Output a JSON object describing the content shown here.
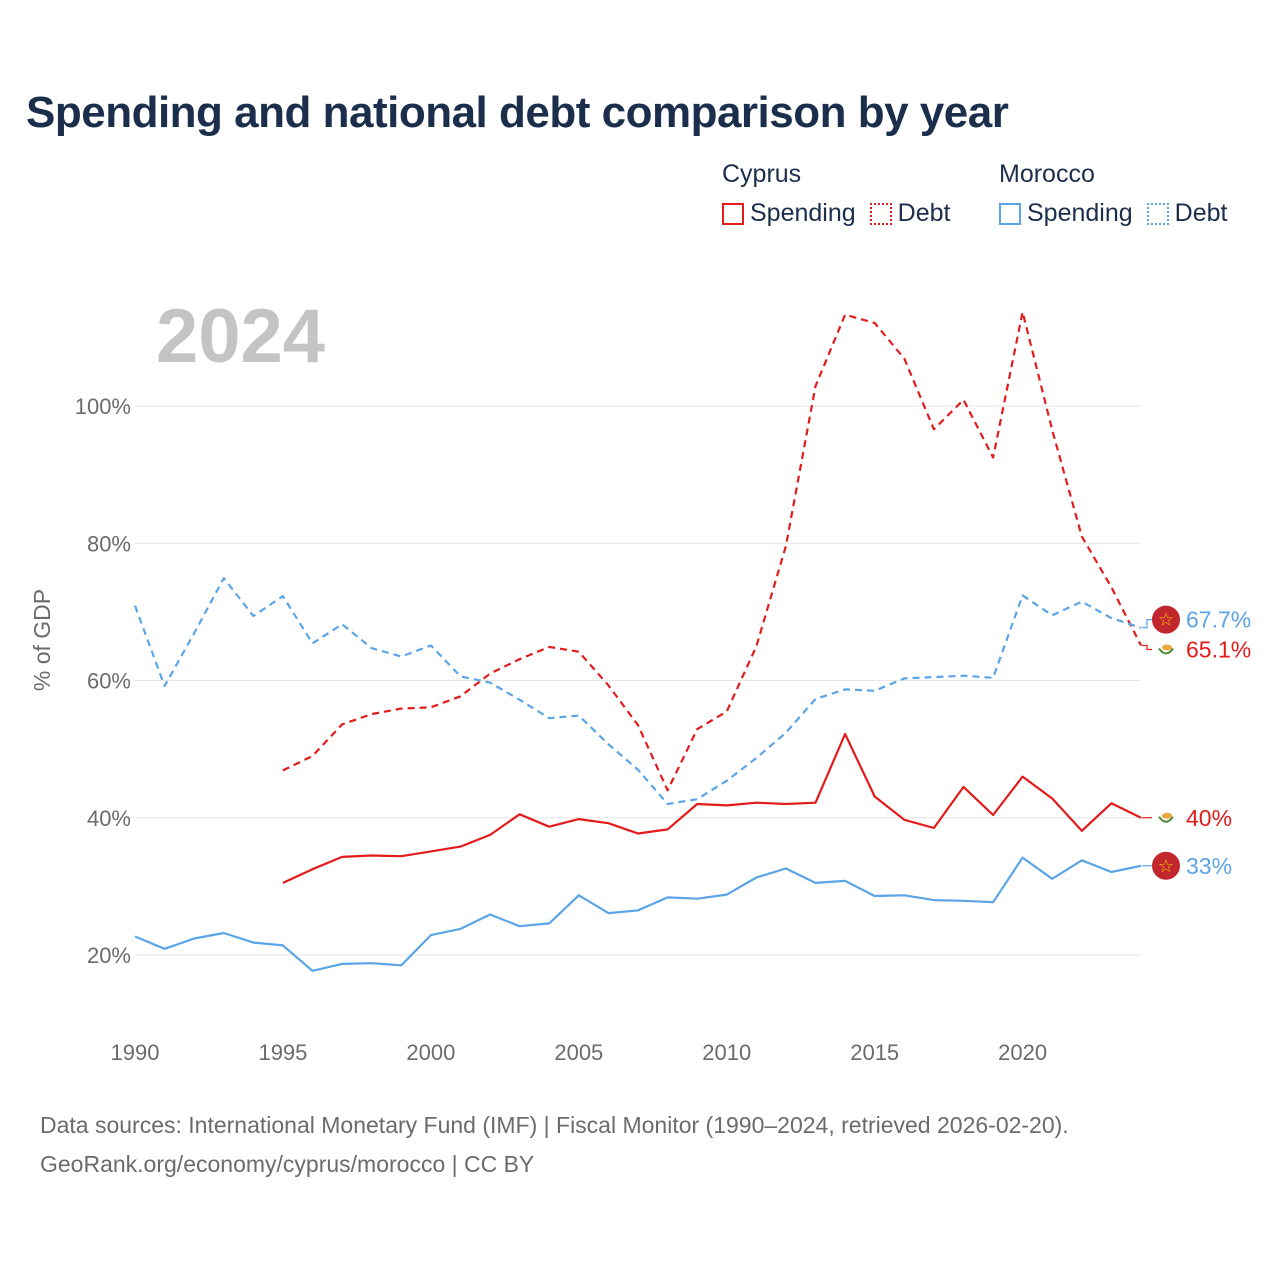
{
  "title": "Spending and national debt comparison by year",
  "legend": {
    "countries": [
      {
        "name": "Cyprus",
        "color": "#e31b1b",
        "items": [
          "Spending",
          "Debt"
        ]
      },
      {
        "name": "Morocco",
        "color": "#5ba4e5",
        "items": [
          "Spending",
          "Debt"
        ]
      }
    ]
  },
  "year_label": "2024",
  "footer": {
    "source": "Data sources: International Monetary Fund (IMF) | Fiscal Monitor (1990–2024, retrieved 2026-02-20).",
    "link": "GeoRank.org/economy/cyprus/morocco | CC BY"
  },
  "chart_data": {
    "type": "line",
    "title": "Spending and national debt comparison by year",
    "xlabel": "",
    "ylabel": "% of GDP",
    "xlim": [
      1990,
      2024
    ],
    "ylim": [
      10,
      115
    ],
    "x_ticks": [
      1990,
      1995,
      2000,
      2005,
      2010,
      2015,
      2020
    ],
    "x_tick_labels": [
      "1990",
      "1995",
      "2000",
      "2005",
      "2010",
      "2015",
      "2020"
    ],
    "y_ticks": [
      20,
      40,
      60,
      80,
      100
    ],
    "y_tick_labels": [
      "20%",
      "40%",
      "60%",
      "80%",
      "100%"
    ],
    "grid": true,
    "series": [
      {
        "name": "Cyprus Spending",
        "country": "cyprus",
        "style": "solid",
        "color": "#e31b1b",
        "x": [
          1995,
          1996,
          1997,
          1998,
          1999,
          2000,
          2001,
          2002,
          2003,
          2004,
          2005,
          2006,
          2007,
          2008,
          2009,
          2010,
          2011,
          2012,
          2013,
          2014,
          2015,
          2016,
          2017,
          2018,
          2019,
          2020,
          2021,
          2022,
          2023,
          2024
        ],
        "values": [
          30.5,
          32.5,
          34.3,
          34.5,
          34.4,
          35.1,
          35.8,
          37.5,
          40.5,
          38.7,
          39.8,
          39.2,
          37.7,
          38.3,
          42.0,
          41.8,
          42.2,
          42.0,
          42.2,
          52.2,
          43.1,
          39.7,
          38.5,
          44.5,
          40.4,
          46.0,
          42.8,
          38.1,
          42.1,
          40.0
        ],
        "end_label": "40%"
      },
      {
        "name": "Cyprus Debt",
        "country": "cyprus",
        "style": "dashed",
        "color": "#e31b1b",
        "x": [
          1995,
          1996,
          1997,
          1998,
          1999,
          2000,
          2001,
          2002,
          2003,
          2004,
          2005,
          2006,
          2007,
          2008,
          2009,
          2010,
          2011,
          2012,
          2013,
          2014,
          2015,
          2016,
          2017,
          2018,
          2019,
          2020,
          2021,
          2022,
          2023,
          2024
        ],
        "values": [
          46.9,
          49.0,
          53.6,
          55.1,
          55.9,
          56.1,
          57.7,
          61.0,
          63.1,
          64.9,
          64.2,
          59.3,
          53.5,
          44.0,
          52.9,
          55.5,
          65.0,
          79.6,
          102.9,
          113.3,
          112.1,
          106.9,
          96.6,
          100.9,
          92.5,
          113.7,
          96.5,
          81.0,
          73.6,
          65.1
        ],
        "end_label": "65.1%"
      },
      {
        "name": "Morocco Spending",
        "country": "morocco",
        "style": "solid",
        "color": "#5ba4e5",
        "x": [
          1990,
          1991,
          1992,
          1993,
          1994,
          1995,
          1996,
          1997,
          1998,
          1999,
          2000,
          2001,
          2002,
          2003,
          2004,
          2005,
          2006,
          2007,
          2008,
          2009,
          2010,
          2011,
          2012,
          2013,
          2014,
          2015,
          2016,
          2017,
          2018,
          2019,
          2020,
          2021,
          2022,
          2023,
          2024
        ],
        "values": [
          22.7,
          20.9,
          22.4,
          23.2,
          21.8,
          21.4,
          17.7,
          18.7,
          18.8,
          18.5,
          22.9,
          23.8,
          25.9,
          24.2,
          24.6,
          28.7,
          26.1,
          26.5,
          28.4,
          28.2,
          28.8,
          31.3,
          32.6,
          30.5,
          30.8,
          28.6,
          28.7,
          28.0,
          27.9,
          27.7,
          34.2,
          31.1,
          33.8,
          32.1,
          33.0
        ],
        "end_label": "33%"
      },
      {
        "name": "Morocco Debt",
        "country": "morocco",
        "style": "dashed",
        "color": "#5ba4e5",
        "x": [
          1990,
          1991,
          1992,
          1993,
          1994,
          1995,
          1996,
          1997,
          1998,
          1999,
          2000,
          2001,
          2002,
          2003,
          2004,
          2005,
          2006,
          2007,
          2008,
          2009,
          2010,
          2011,
          2012,
          2013,
          2014,
          2015,
          2016,
          2017,
          2018,
          2019,
          2020,
          2021,
          2022,
          2023,
          2024
        ],
        "values": [
          70.9,
          59.2,
          66.9,
          74.9,
          69.4,
          72.3,
          65.4,
          68.2,
          64.7,
          63.5,
          65.1,
          60.6,
          59.7,
          57.2,
          54.5,
          54.9,
          50.7,
          47.0,
          42.0,
          42.7,
          45.4,
          48.7,
          52.4,
          57.3,
          58.7,
          58.5,
          60.3,
          60.5,
          60.7,
          60.4,
          72.4,
          69.5,
          71.5,
          69.1,
          67.7
        ],
        "end_label": "67.7%"
      }
    ]
  }
}
